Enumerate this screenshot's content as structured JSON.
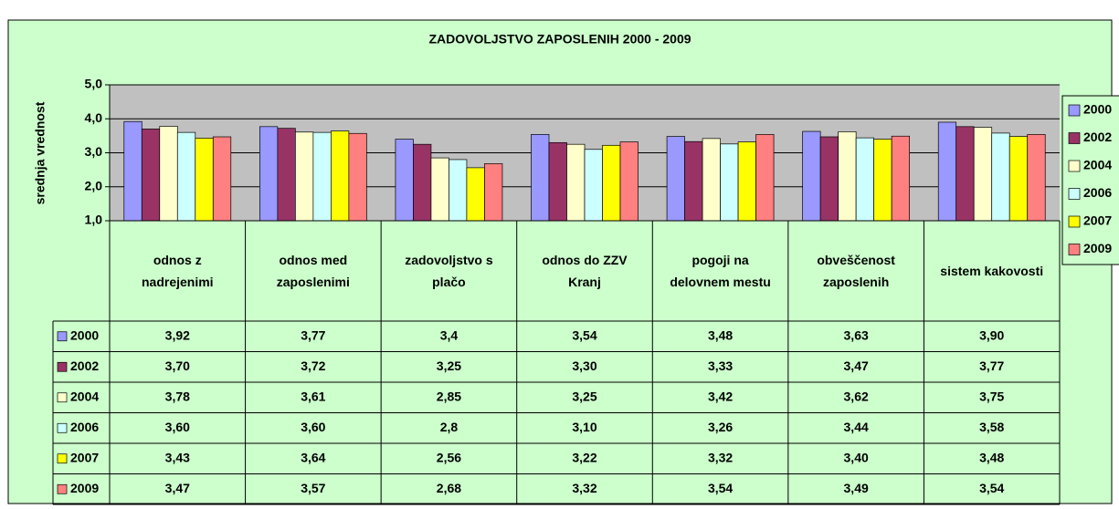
{
  "chart_data": {
    "type": "bar",
    "title": "ZADOVOLJSTVO ZAPOSLENIH 2000 - 2009",
    "y_axis_label": "srednja vrednost",
    "categories": [
      "odnos z nadrejenimi",
      "odnos med zaposlenimi",
      "zadovoljstvo s plačo",
      "odnos do ZZV Kranj",
      "pogoji na delovnem mestu",
      "obveščenost zaposlenih",
      "sistem kakovosti"
    ],
    "series": [
      {
        "name": "2000",
        "color": "#9999ff",
        "values": [
          3.92,
          3.77,
          3.4,
          3.54,
          3.48,
          3.63,
          3.9
        ],
        "value_labels": [
          "3,92",
          "3,77",
          "3,4",
          "3,54",
          "3,48",
          "3,63",
          "3,90"
        ]
      },
      {
        "name": "2002",
        "color": "#993366",
        "values": [
          3.7,
          3.72,
          3.25,
          3.3,
          3.33,
          3.47,
          3.77
        ],
        "value_labels": [
          "3,70",
          "3,72",
          "3,25",
          "3,30",
          "3,33",
          "3,47",
          "3,77"
        ]
      },
      {
        "name": "2004",
        "color": "#ffffcc",
        "values": [
          3.78,
          3.61,
          2.85,
          3.25,
          3.42,
          3.62,
          3.75
        ],
        "value_labels": [
          "3,78",
          "3,61",
          "2,85",
          "3,25",
          "3,42",
          "3,62",
          "3,75"
        ]
      },
      {
        "name": "2006",
        "color": "#ccffff",
        "values": [
          3.6,
          3.6,
          2.8,
          3.1,
          3.26,
          3.44,
          3.58
        ],
        "value_labels": [
          "3,60",
          "3,60",
          "2,8",
          "3,10",
          "3,26",
          "3,44",
          "3,58"
        ]
      },
      {
        "name": "2007",
        "color": "#ffff00",
        "values": [
          3.43,
          3.64,
          2.56,
          3.22,
          3.32,
          3.4,
          3.48
        ],
        "value_labels": [
          "3,43",
          "3,64",
          "2,56",
          "3,22",
          "3,32",
          "3,40",
          "3,48"
        ]
      },
      {
        "name": "2009",
        "color": "#ff8080",
        "values": [
          3.47,
          3.57,
          2.68,
          3.32,
          3.54,
          3.49,
          3.54
        ],
        "value_labels": [
          "3,47",
          "3,57",
          "2,68",
          "3,32",
          "3,54",
          "3,49",
          "3,54"
        ]
      }
    ],
    "ylim": [
      1,
      5
    ],
    "yticks": [
      {
        "value": 1,
        "label": "1,0"
      },
      {
        "value": 2,
        "label": "2,0"
      },
      {
        "value": 3,
        "label": "3,0"
      },
      {
        "value": 4,
        "label": "4,0"
      },
      {
        "value": 5,
        "label": "5,0"
      }
    ],
    "grid": true,
    "legend": "right",
    "data_table": true
  }
}
